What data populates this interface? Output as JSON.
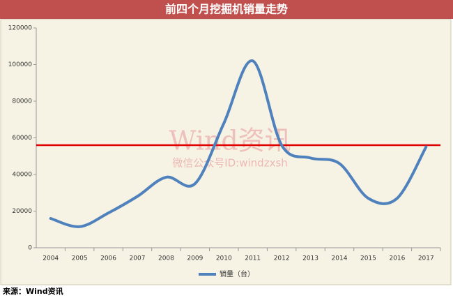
{
  "chart_data": {
    "type": "line",
    "title": "前四个月挖掘机销量走势",
    "categories": [
      "2004",
      "2005",
      "2006",
      "2007",
      "2008",
      "2009",
      "2010",
      "2011",
      "2012",
      "2013",
      "2014",
      "2015",
      "2016",
      "2017"
    ],
    "series": [
      {
        "name": "销量（台）",
        "color": "#4f81bd",
        "values": [
          16000,
          11500,
          19000,
          28000,
          38500,
          35000,
          68000,
          102000,
          56000,
          49000,
          46000,
          27000,
          27000,
          55000
        ]
      }
    ],
    "ylim": [
      0,
      120000
    ],
    "yticks": [
      0,
      20000,
      40000,
      60000,
      80000,
      100000,
      120000
    ],
    "grid": false,
    "reference_line": {
      "value": 56000,
      "color": "#e00000"
    },
    "legend": "bottom"
  },
  "watermark": {
    "title": "Wind资讯",
    "subtitle": "微信公众号ID:windzxsh"
  },
  "source": "来源：Wind资讯"
}
